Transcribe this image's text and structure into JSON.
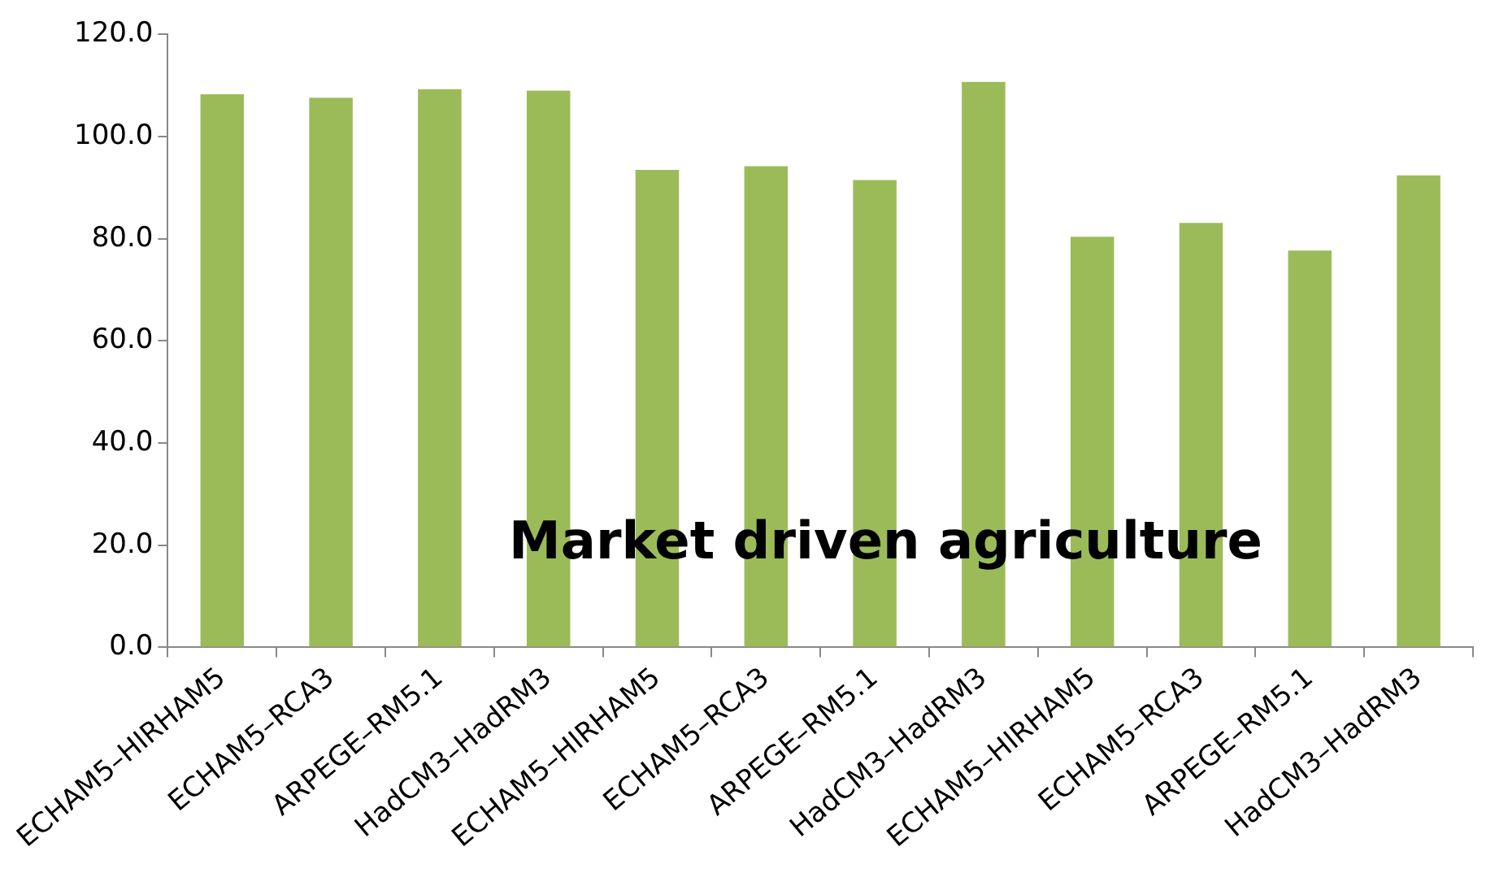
{
  "chart_data": {
    "type": "bar",
    "title": "Market driven agriculture",
    "categories": [
      "ECHAM5–HIRHAM5",
      "ECHAM5–RCA3",
      "ARPEGE–RM5.1",
      "HadCM3–HadRM3",
      "ECHAM5–HIRHAM5",
      "ECHAM5–RCA3",
      "ARPEGE–RM5.1",
      "HadCM3–HadRM3",
      "ECHAM5–HIRHAM5",
      "ECHAM5–RCA3",
      "ARPEGE–RM5.1",
      "HadCM3–HadRM3"
    ],
    "values": [
      108.3,
      107.6,
      109.3,
      109.0,
      93.5,
      94.2,
      91.5,
      110.7,
      80.4,
      83.1,
      77.7,
      92.4
    ],
    "color": "#9bbb59",
    "ylim": [
      0,
      120
    ],
    "yticks": [
      {
        "value": 0,
        "label": "0.0"
      },
      {
        "value": 20,
        "label": "20.0"
      },
      {
        "value": 40,
        "label": "40.0"
      },
      {
        "value": 60,
        "label": "60.0"
      },
      {
        "value": 80,
        "label": "80.0"
      },
      {
        "value": 100,
        "label": "100.0"
      },
      {
        "value": 120,
        "label": "120.0"
      }
    ],
    "grid": false
  }
}
